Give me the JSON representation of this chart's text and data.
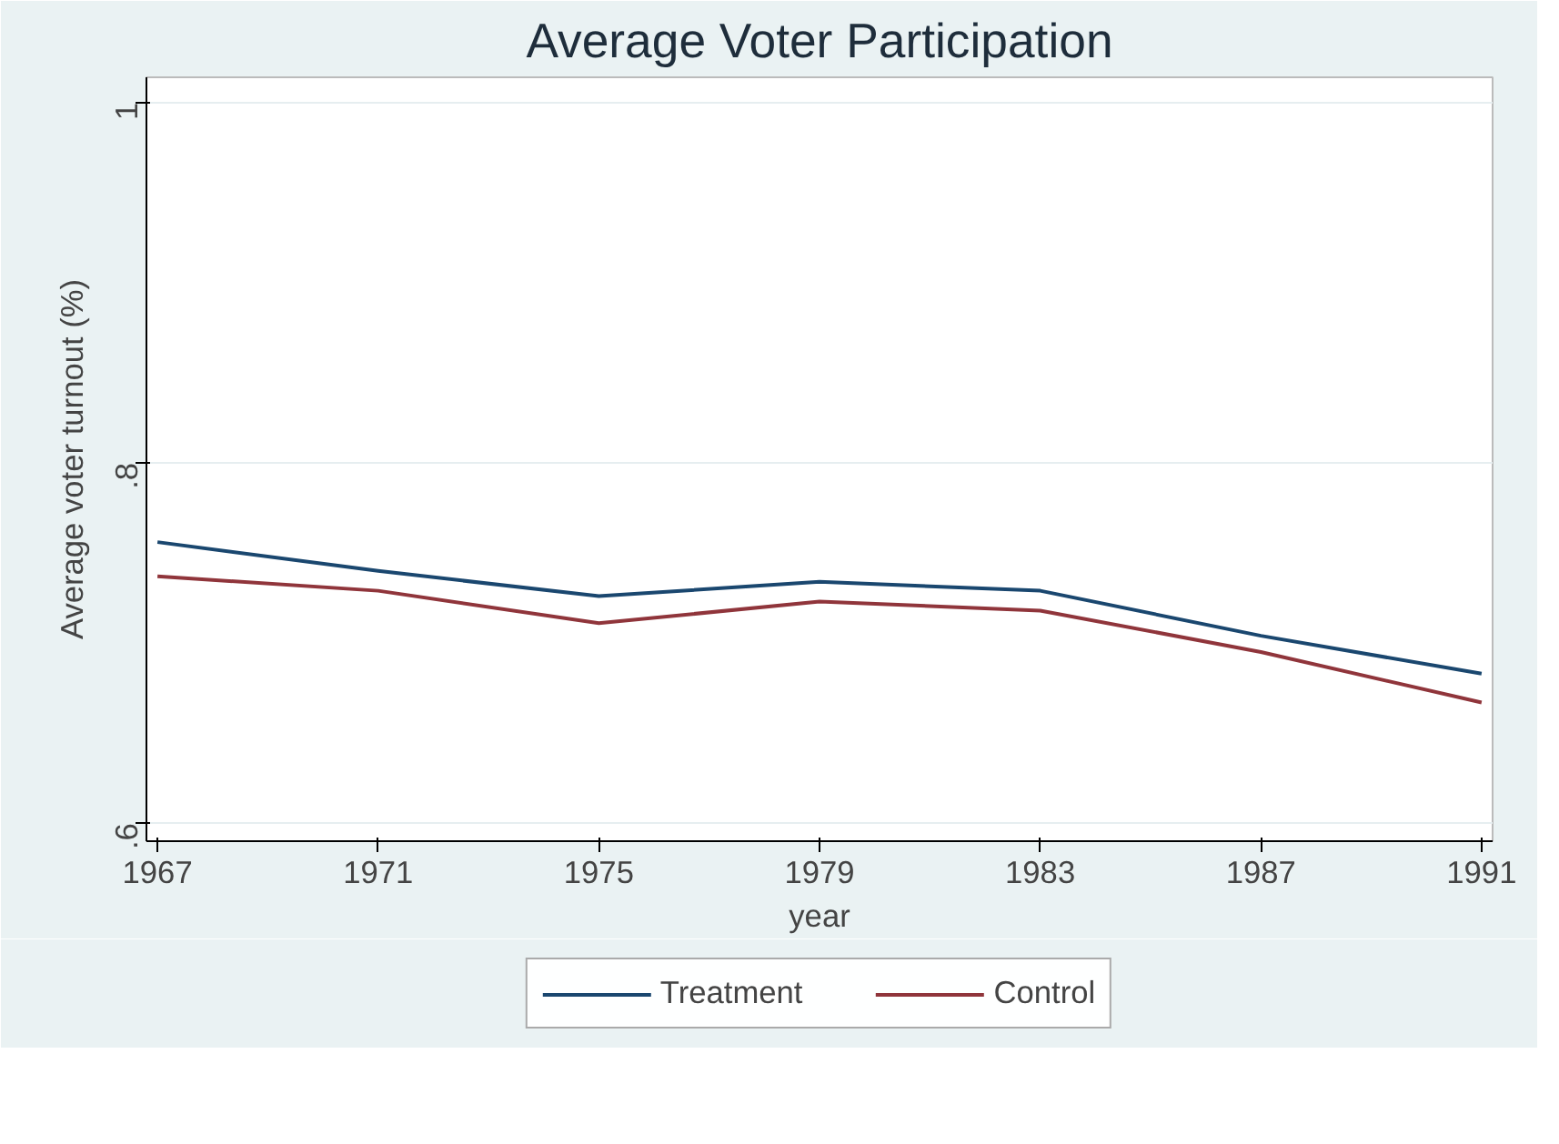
{
  "chart_data": {
    "type": "line",
    "title": "Average Voter Participation",
    "xlabel": "year",
    "ylabel": "Average voter turnout (%)",
    "x": [
      1967,
      1971,
      1975,
      1979,
      1983,
      1987,
      1991
    ],
    "series": [
      {
        "name": "Treatment",
        "color": "#1a476f",
        "values": [
          0.756,
          0.74,
          0.726,
          0.734,
          0.729,
          0.704,
          0.683
        ]
      },
      {
        "name": "Control",
        "color": "#90353b",
        "values": [
          0.737,
          0.729,
          0.711,
          0.723,
          0.718,
          0.695,
          0.667
        ]
      }
    ],
    "xlim": [
      1966.8,
      1991.2
    ],
    "ylim": [
      0.59,
      1.014
    ],
    "xticks": [
      1967,
      1971,
      1975,
      1979,
      1983,
      1987,
      1991
    ],
    "yticks": [
      {
        "value": 0.6,
        "label": ".6"
      },
      {
        "value": 0.8,
        "label": ".8"
      },
      {
        "value": 1,
        "label": "1"
      }
    ],
    "grid": "y",
    "legend": "bottom",
    "marker": "none",
    "line_style": "solid"
  }
}
